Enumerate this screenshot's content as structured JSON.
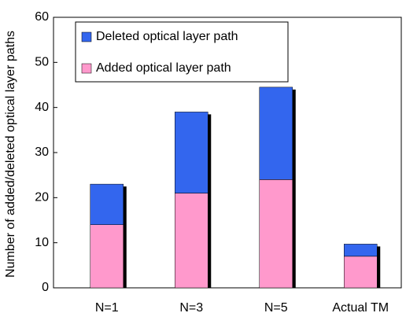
{
  "chart_data": {
    "type": "stacked_bar",
    "y_label": "Number of added/deleted optical layer paths",
    "categories": [
      "N=1",
      "N=3",
      "N=5",
      "Actual TM"
    ],
    "series": [
      {
        "name": "Added optical layer path",
        "color": "#ff99cc",
        "values": [
          14,
          21,
          24,
          7
        ]
      },
      {
        "name": "Deleted optical layer path",
        "color": "#3366ee",
        "values": [
          9,
          18,
          20.5,
          2.7
        ]
      }
    ],
    "ylim": [
      0,
      60
    ],
    "yticks": [
      0,
      10,
      20,
      30,
      40,
      50,
      60
    ],
    "legend": "upper left"
  }
}
